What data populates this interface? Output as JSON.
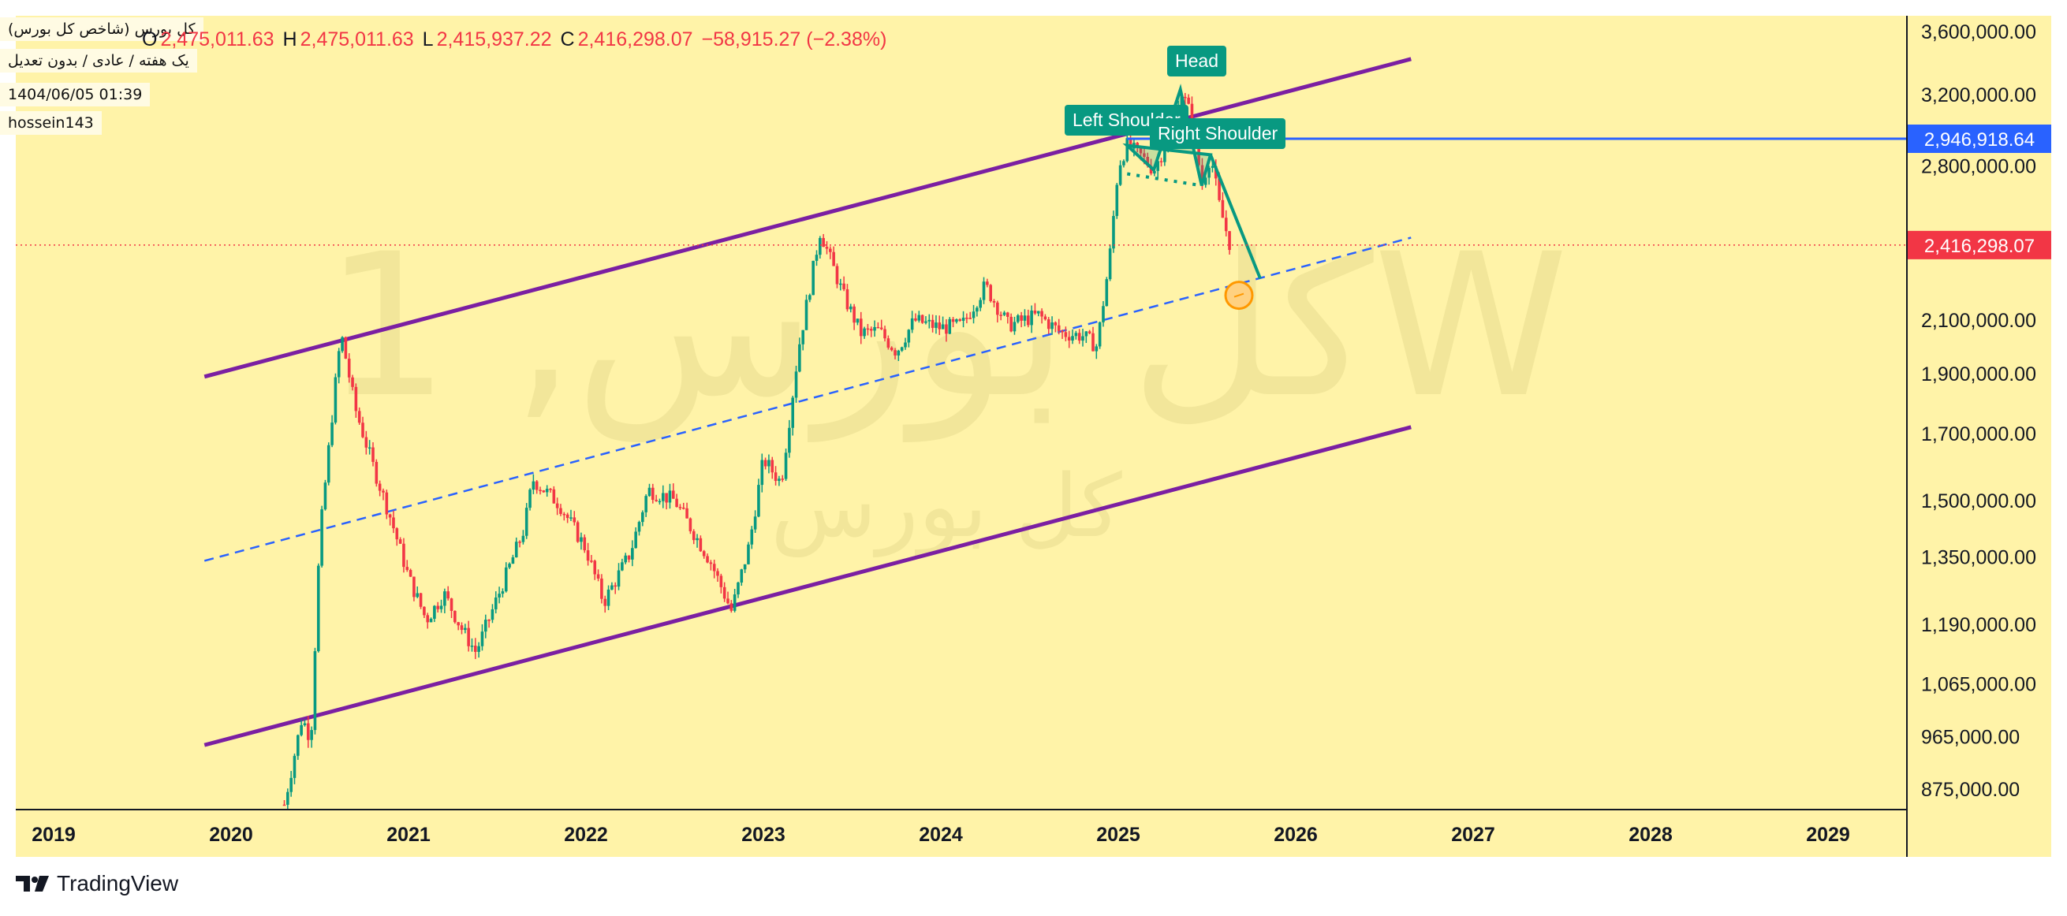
{
  "header": {
    "symbol_title": "کل بورس (شاخص کل بورس)",
    "interval_line": "یک هفته / عادی / بدون تعدیل",
    "date_time": "1404/06/05 01:39",
    "author": "hossein143",
    "ohlc": {
      "open_label": "O",
      "open_value": "2,475,011.63",
      "high_label": "H",
      "high_value": "2,475,011.63",
      "low_label": "L",
      "low_value": "2,415,937.22",
      "close_label": "C",
      "close_value": "2,416,298.07",
      "change": "−58,915.27 (−2.38%)"
    }
  },
  "footer": {
    "brand": "TradingView"
  },
  "colors": {
    "background": "#fff3a8",
    "up": "#089981",
    "down": "#f23645",
    "channel": "#7b1fa2",
    "midline": "#2962ff",
    "pattern": "#089981",
    "price_badge": "#f23645",
    "level_badge": "#2962ff"
  },
  "chart_data": {
    "type": "candlestick",
    "scale": "log",
    "watermark": "کل بورس, 1W",
    "watermark_sub": "کل بورس",
    "x_axis": {
      "ticks": [
        "2019",
        "2020",
        "2021",
        "2022",
        "2023",
        "2024",
        "2025",
        "2026",
        "2027",
        "2028",
        "2029"
      ]
    },
    "y_axis": {
      "ticks": [
        "3,600,000.00",
        "3,200,000.00",
        "2,800,000.00",
        "2,100,000.00",
        "1,900,000.00",
        "1,700,000.00",
        "1,500,000.00",
        "1,350,000.00",
        "1,190,000.00",
        "1,065,000.00",
        "965,000.00",
        "875,000.00"
      ],
      "tick_values": [
        3600000,
        3200000,
        2800000,
        2100000,
        1900000,
        1700000,
        1500000,
        1350000,
        1190000,
        1065000,
        965000,
        875000
      ]
    },
    "price_line": {
      "label": "2,416,298.07",
      "value": 2416298.07
    },
    "horizontal_level": {
      "label": "2,946,918.64",
      "value": 2946918.64
    },
    "pattern_labels": {
      "left_shoulder": "Left Shoulder",
      "head": "Head",
      "right_shoulder": "Right Shoulder"
    },
    "channel_lines": {
      "upper": [
        {
          "t": 2019.85,
          "v": 1890000
        },
        {
          "t": 2026.65,
          "v": 3420000
        }
      ],
      "lower": [
        {
          "t": 2019.85,
          "v": 950000
        },
        {
          "t": 2026.65,
          "v": 1720000
        }
      ],
      "middle": [
        {
          "t": 2019.85,
          "v": 1340000
        },
        {
          "t": 2026.65,
          "v": 2450000
        }
      ]
    },
    "projection": [
      {
        "t": 2025.52,
        "v": 2860000
      },
      {
        "t": 2025.8,
        "v": 2270000
      }
    ],
    "target_marker": {
      "t": 2025.68,
      "v": 2200000
    },
    "key_points": [
      {
        "t": 2020.3,
        "v": 850000
      },
      {
        "t": 2020.4,
        "v": 1000000
      },
      {
        "t": 2020.45,
        "v": 960000
      },
      {
        "t": 2020.5,
        "v": 1400000
      },
      {
        "t": 2020.58,
        "v": 1820000
      },
      {
        "t": 2020.62,
        "v": 2050000
      },
      {
        "t": 2020.7,
        "v": 1780000
      },
      {
        "t": 2020.8,
        "v": 1600000
      },
      {
        "t": 2020.9,
        "v": 1450000
      },
      {
        "t": 2021.0,
        "v": 1300000
      },
      {
        "t": 2021.1,
        "v": 1200000
      },
      {
        "t": 2021.2,
        "v": 1260000
      },
      {
        "t": 2021.3,
        "v": 1180000
      },
      {
        "t": 2021.38,
        "v": 1130000
      },
      {
        "t": 2021.5,
        "v": 1250000
      },
      {
        "t": 2021.65,
        "v": 1420000
      },
      {
        "t": 2021.7,
        "v": 1560000
      },
      {
        "t": 2021.85,
        "v": 1490000
      },
      {
        "t": 2022.0,
        "v": 1370000
      },
      {
        "t": 2022.1,
        "v": 1240000
      },
      {
        "t": 2022.25,
        "v": 1360000
      },
      {
        "t": 2022.35,
        "v": 1530000
      },
      {
        "t": 2022.5,
        "v": 1500000
      },
      {
        "t": 2022.7,
        "v": 1340000
      },
      {
        "t": 2022.82,
        "v": 1220000
      },
      {
        "t": 2022.92,
        "v": 1380000
      },
      {
        "t": 2023.0,
        "v": 1620000
      },
      {
        "t": 2023.1,
        "v": 1550000
      },
      {
        "t": 2023.2,
        "v": 2000000
      },
      {
        "t": 2023.32,
        "v": 2480000
      },
      {
        "t": 2023.45,
        "v": 2200000
      },
      {
        "t": 2023.55,
        "v": 2050000
      },
      {
        "t": 2023.65,
        "v": 2060000
      },
      {
        "t": 2023.75,
        "v": 1980000
      },
      {
        "t": 2023.85,
        "v": 2100000
      },
      {
        "t": 2024.0,
        "v": 2070000
      },
      {
        "t": 2024.12,
        "v": 2080000
      },
      {
        "t": 2024.25,
        "v": 2240000
      },
      {
        "t": 2024.38,
        "v": 2080000
      },
      {
        "t": 2024.55,
        "v": 2120000
      },
      {
        "t": 2024.68,
        "v": 2050000
      },
      {
        "t": 2024.8,
        "v": 2040000
      },
      {
        "t": 2024.88,
        "v": 2000000
      },
      {
        "t": 2024.95,
        "v": 2350000
      },
      {
        "t": 2025.0,
        "v": 2800000
      },
      {
        "t": 2025.05,
        "v": 2910000
      },
      {
        "t": 2025.12,
        "v": 2860000
      },
      {
        "t": 2025.2,
        "v": 2780000
      },
      {
        "t": 2025.28,
        "v": 2940000
      },
      {
        "t": 2025.35,
        "v": 3230000
      },
      {
        "t": 2025.42,
        "v": 3050000
      },
      {
        "t": 2025.47,
        "v": 2700000
      },
      {
        "t": 2025.52,
        "v": 2860000
      },
      {
        "t": 2025.57,
        "v": 2600000
      },
      {
        "t": 2025.63,
        "v": 2416298
      }
    ]
  }
}
